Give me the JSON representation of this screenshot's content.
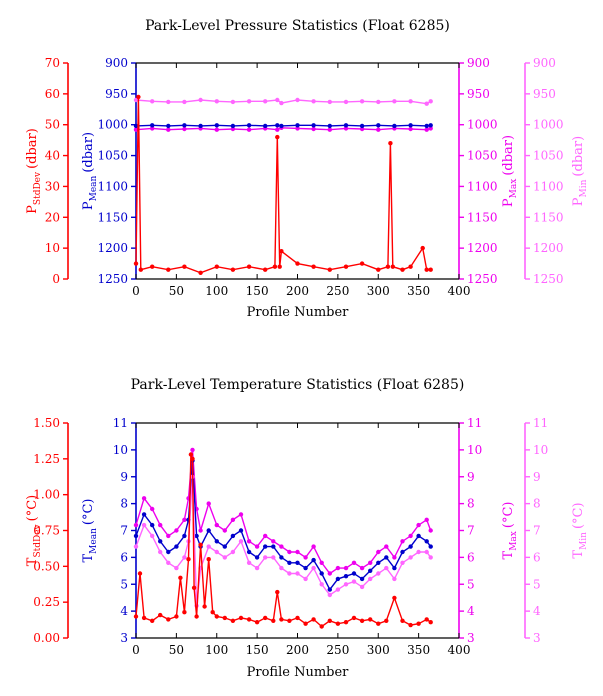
{
  "colors": {
    "stddev": "#ff0000",
    "mean": "#0000cc",
    "max": "#ee00ee",
    "min": "#ff66ff",
    "frame": "#000000"
  },
  "chart_data": [
    {
      "type": "line",
      "title": "Park-Level Pressure Statistics (Float 6285)",
      "xlabel": "Profile Number",
      "xlim": [
        0,
        400
      ],
      "x_ticks": [
        "0",
        "50",
        "100",
        "150",
        "200",
        "250",
        "300",
        "350",
        "400"
      ],
      "axes": [
        {
          "key": "stddev",
          "label": "P",
          "sub": "StdDev",
          "unit": "(dbar)",
          "lim": [
            0,
            70
          ],
          "inverted": false,
          "ticks": [
            0,
            10,
            20,
            30,
            40,
            50,
            60,
            70
          ],
          "tick_labels": [
            "0",
            "10",
            "20",
            "30",
            "40",
            "50",
            "60",
            "70"
          ]
        },
        {
          "key": "mean",
          "label": "P",
          "sub": "Mean",
          "unit": "(dbar)",
          "lim": [
            900,
            1250
          ],
          "inverted": true,
          "ticks": [
            900,
            950,
            1000,
            1050,
            1100,
            1150,
            1200,
            1250
          ],
          "tick_labels": [
            "900",
            "950",
            "1000",
            "1050",
            "1100",
            "1150",
            "1200",
            "1250"
          ]
        },
        {
          "key": "max",
          "label": "P",
          "sub": "Max",
          "unit": "(dbar)",
          "lim": [
            900,
            1250
          ],
          "inverted": true,
          "ticks": [
            900,
            950,
            1000,
            1050,
            1100,
            1150,
            1200,
            1250
          ],
          "tick_labels": [
            "900",
            "950",
            "1000",
            "1050",
            "1100",
            "1150",
            "1200",
            "1250"
          ]
        },
        {
          "key": "min",
          "label": "P",
          "sub": "Min",
          "unit": "(dbar)",
          "lim": [
            900,
            1250
          ],
          "inverted": true,
          "ticks": [
            900,
            950,
            1000,
            1050,
            1100,
            1150,
            1200,
            1250
          ],
          "tick_labels": [
            "900",
            "950",
            "1000",
            "1050",
            "1100",
            "1150",
            "1200",
            "1250"
          ]
        }
      ],
      "series": [
        {
          "key": "min",
          "x": [
            0,
            20,
            40,
            60,
            80,
            100,
            120,
            140,
            160,
            175,
            180,
            200,
            220,
            240,
            260,
            280,
            300,
            320,
            340,
            360,
            365
          ],
          "y": [
            960,
            962,
            963,
            963,
            960,
            962,
            963,
            962,
            962,
            960,
            965,
            960,
            962,
            963,
            963,
            962,
            963,
            962,
            962,
            966,
            962
          ]
        },
        {
          "key": "max",
          "x": [
            0,
            20,
            40,
            60,
            80,
            100,
            120,
            140,
            160,
            175,
            180,
            200,
            220,
            240,
            260,
            280,
            300,
            320,
            340,
            360,
            365
          ],
          "y": [
            1008,
            1006,
            1008,
            1007,
            1006,
            1008,
            1007,
            1008,
            1006,
            1008,
            1005,
            1006,
            1007,
            1008,
            1006,
            1007,
            1008,
            1006,
            1007,
            1008,
            1006
          ]
        },
        {
          "key": "mean",
          "x": [
            0,
            20,
            40,
            60,
            80,
            100,
            120,
            140,
            160,
            175,
            180,
            200,
            220,
            240,
            260,
            280,
            300,
            320,
            340,
            360,
            365
          ],
          "y": [
            1002,
            1001,
            1002,
            1001,
            1002,
            1001,
            1002,
            1001,
            1002,
            1001,
            1002,
            1001,
            1001,
            1002,
            1001,
            1002,
            1001,
            1002,
            1001,
            1002,
            1001
          ]
        },
        {
          "key": "stddev",
          "x": [
            0,
            3,
            6,
            20,
            40,
            60,
            80,
            100,
            120,
            140,
            160,
            172,
            175,
            178,
            180,
            200,
            220,
            240,
            260,
            280,
            300,
            312,
            315,
            318,
            330,
            340,
            355,
            360,
            365
          ],
          "y": [
            5,
            59,
            3,
            4,
            3,
            4,
            2,
            4,
            3,
            4,
            3,
            4,
            46,
            4,
            9,
            5,
            4,
            3,
            4,
            5,
            3,
            4,
            44,
            4,
            3,
            4,
            10,
            3,
            3
          ]
        }
      ]
    },
    {
      "type": "line",
      "title": "Park-Level Temperature Statistics (Float 6285)",
      "xlabel": "Profile Number",
      "xlim": [
        0,
        400
      ],
      "x_ticks": [
        "0",
        "50",
        "100",
        "150",
        "200",
        "250",
        "300",
        "350",
        "400"
      ],
      "axes": [
        {
          "key": "stddev",
          "label": "T",
          "sub": "StdDev",
          "unit": "(°C)",
          "lim": [
            0,
            1.5
          ],
          "inverted": false,
          "ticks": [
            0,
            0.25,
            0.5,
            0.75,
            1.0,
            1.25,
            1.5
          ],
          "tick_labels": [
            "0.00",
            "0.25",
            "0.50",
            "0.75",
            "1.00",
            "1.25",
            "1.50"
          ]
        },
        {
          "key": "mean",
          "label": "T",
          "sub": "Mean",
          "unit": "(°C)",
          "lim": [
            3,
            11
          ],
          "inverted": false,
          "ticks": [
            3,
            4,
            5,
            6,
            7,
            8,
            9,
            10,
            11
          ],
          "tick_labels": [
            "3",
            "4",
            "5",
            "6",
            "7",
            "8",
            "9",
            "10",
            "11"
          ]
        },
        {
          "key": "max",
          "label": "T",
          "sub": "Max",
          "unit": "(°C)",
          "lim": [
            3,
            11
          ],
          "inverted": false,
          "ticks": [
            3,
            4,
            5,
            6,
            7,
            8,
            9,
            10,
            11
          ],
          "tick_labels": [
            "3",
            "4",
            "5",
            "6",
            "7",
            "8",
            "9",
            "10",
            "11"
          ]
        },
        {
          "key": "min",
          "label": "T",
          "sub": "Min",
          "unit": "(°C)",
          "lim": [
            3,
            11
          ],
          "inverted": false,
          "ticks": [
            3,
            4,
            5,
            6,
            7,
            8,
            9,
            10,
            11
          ],
          "tick_labels": [
            "3",
            "4",
            "5",
            "6",
            "7",
            "8",
            "9",
            "10",
            "11"
          ]
        }
      ],
      "series": [
        {
          "key": "max",
          "x": [
            0,
            10,
            20,
            30,
            40,
            50,
            60,
            65,
            70,
            75,
            80,
            90,
            100,
            110,
            120,
            130,
            140,
            150,
            160,
            170,
            180,
            190,
            200,
            210,
            220,
            230,
            240,
            250,
            260,
            270,
            280,
            290,
            300,
            310,
            320,
            330,
            340,
            350,
            360,
            365
          ],
          "y": [
            7.2,
            8.2,
            7.8,
            7.2,
            6.8,
            7.0,
            7.4,
            8.2,
            10.0,
            7.8,
            7.0,
            8.0,
            7.2,
            7.0,
            7.4,
            7.6,
            6.6,
            6.4,
            6.8,
            6.6,
            6.4,
            6.2,
            6.2,
            6.0,
            6.4,
            5.8,
            5.4,
            5.6,
            5.6,
            5.8,
            5.6,
            5.8,
            6.2,
            6.4,
            6.0,
            6.6,
            6.8,
            7.2,
            7.4,
            7.0
          ]
        },
        {
          "key": "mean",
          "x": [
            0,
            10,
            20,
            30,
            40,
            50,
            60,
            65,
            70,
            75,
            80,
            90,
            100,
            110,
            120,
            130,
            140,
            150,
            160,
            170,
            180,
            190,
            200,
            210,
            220,
            230,
            240,
            250,
            260,
            270,
            280,
            290,
            300,
            310,
            320,
            330,
            340,
            350,
            360,
            365
          ],
          "y": [
            6.8,
            7.6,
            7.2,
            6.6,
            6.2,
            6.4,
            6.8,
            7.4,
            9.6,
            6.8,
            6.4,
            7.0,
            6.6,
            6.4,
            6.8,
            7.0,
            6.2,
            6.0,
            6.4,
            6.4,
            6.0,
            5.8,
            5.8,
            5.6,
            5.9,
            5.4,
            4.8,
            5.2,
            5.3,
            5.4,
            5.2,
            5.5,
            5.8,
            6.0,
            5.6,
            6.2,
            6.4,
            6.8,
            6.6,
            6.4
          ]
        },
        {
          "key": "min",
          "x": [
            0,
            10,
            20,
            30,
            40,
            50,
            60,
            65,
            70,
            75,
            80,
            90,
            100,
            110,
            120,
            130,
            140,
            150,
            160,
            170,
            180,
            190,
            200,
            210,
            220,
            230,
            240,
            250,
            260,
            270,
            280,
            290,
            300,
            310,
            320,
            330,
            340,
            350,
            360,
            365
          ],
          "y": [
            6.4,
            7.2,
            6.8,
            6.2,
            5.8,
            5.6,
            6.0,
            6.6,
            9.0,
            4.2,
            5.6,
            6.4,
            6.2,
            6.0,
            6.2,
            6.6,
            5.8,
            5.6,
            6.0,
            6.0,
            5.6,
            5.4,
            5.4,
            5.2,
            5.6,
            5.0,
            4.6,
            4.8,
            5.0,
            5.1,
            4.9,
            5.2,
            5.4,
            5.6,
            5.2,
            5.8,
            6.0,
            6.2,
            6.2,
            6.0
          ]
        },
        {
          "key": "stddev",
          "x": [
            0,
            5,
            10,
            20,
            30,
            40,
            50,
            55,
            60,
            65,
            68,
            70,
            72,
            75,
            80,
            85,
            90,
            95,
            100,
            110,
            120,
            130,
            140,
            150,
            160,
            170,
            175,
            180,
            190,
            200,
            210,
            220,
            230,
            240,
            250,
            260,
            270,
            280,
            290,
            300,
            310,
            320,
            330,
            340,
            350,
            360,
            365
          ],
          "y": [
            0.15,
            0.45,
            0.14,
            0.12,
            0.16,
            0.13,
            0.15,
            0.42,
            0.18,
            0.55,
            1.28,
            1.25,
            0.35,
            0.15,
            0.65,
            0.22,
            0.55,
            0.18,
            0.15,
            0.14,
            0.12,
            0.14,
            0.13,
            0.11,
            0.14,
            0.12,
            0.32,
            0.13,
            0.12,
            0.14,
            0.1,
            0.13,
            0.08,
            0.12,
            0.1,
            0.11,
            0.14,
            0.12,
            0.13,
            0.1,
            0.12,
            0.28,
            0.12,
            0.09,
            0.1,
            0.13,
            0.11
          ]
        }
      ]
    }
  ]
}
